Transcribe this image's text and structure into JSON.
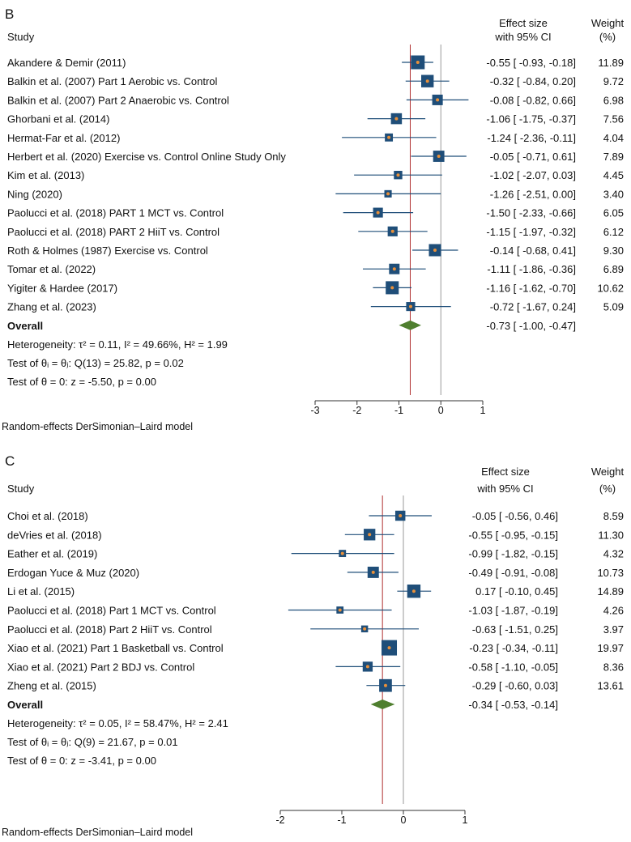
{
  "chart_data": [
    {
      "type": "forest",
      "panel_label": "B",
      "header": {
        "study": "Study",
        "effect_line1": "Effect size",
        "effect_line2": "with 95% CI",
        "weight_line1": "Weight",
        "weight_line2": "(%)"
      },
      "studies": [
        {
          "name": "Akandere & Demir (2011)",
          "es": -0.55,
          "lo": -0.93,
          "hi": -0.18,
          "weight": 11.89,
          "ci_text": "-0.55 [ -0.93,  -0.18]",
          "weight_text": "11.89"
        },
        {
          "name": "Balkin et al. (2007) Part 1 Aerobic vs. Control",
          "es": -0.32,
          "lo": -0.84,
          "hi": 0.2,
          "weight": 9.72,
          "ci_text": "-0.32 [ -0.84,   0.20]",
          "weight_text": "9.72"
        },
        {
          "name": "Balkin et al. (2007) Part 2 Anaerobic vs. Control",
          "es": -0.08,
          "lo": -0.82,
          "hi": 0.66,
          "weight": 6.98,
          "ci_text": "-0.08 [ -0.82,   0.66]",
          "weight_text": "6.98"
        },
        {
          "name": "Ghorbani et al. (2014)",
          "es": -1.06,
          "lo": -1.75,
          "hi": -0.37,
          "weight": 7.56,
          "ci_text": "-1.06 [ -1.75,  -0.37]",
          "weight_text": "7.56"
        },
        {
          "name": "Hermat-Far et al. (2012)",
          "es": -1.24,
          "lo": -2.36,
          "hi": -0.11,
          "weight": 4.04,
          "ci_text": "-1.24 [ -2.36,  -0.11]",
          "weight_text": "4.04"
        },
        {
          "name": "Herbert et al. (2020) Exercise vs. Control Online Study Only",
          "es": -0.05,
          "lo": -0.71,
          "hi": 0.61,
          "weight": 7.89,
          "ci_text": "-0.05 [ -0.71,   0.61]",
          "weight_text": "7.89"
        },
        {
          "name": "Kim et al. (2013)",
          "es": -1.02,
          "lo": -2.07,
          "hi": 0.03,
          "weight": 4.45,
          "ci_text": "-1.02 [ -2.07,   0.03]",
          "weight_text": "4.45"
        },
        {
          "name": "Ning (2020)",
          "es": -1.26,
          "lo": -2.51,
          "hi": 0.0,
          "weight": 3.4,
          "ci_text": "-1.26 [ -2.51,   0.00]",
          "weight_text": "3.40"
        },
        {
          "name": "Paolucci et al. (2018) PART 1 MCT vs. Control",
          "es": -1.5,
          "lo": -2.33,
          "hi": -0.66,
          "weight": 6.05,
          "ci_text": "-1.50 [ -2.33,  -0.66]",
          "weight_text": "6.05"
        },
        {
          "name": "Paolucci et al. (2018) PART 2 HiiT vs. Control",
          "es": -1.15,
          "lo": -1.97,
          "hi": -0.32,
          "weight": 6.12,
          "ci_text": "-1.15 [ -1.97,  -0.32]",
          "weight_text": "6.12"
        },
        {
          "name": "Roth & Holmes (1987) Exercise vs. Control",
          "es": -0.14,
          "lo": -0.68,
          "hi": 0.41,
          "weight": 9.3,
          "ci_text": "-0.14 [ -0.68,   0.41]",
          "weight_text": "9.30"
        },
        {
          "name": "Tomar et al. (2022)",
          "es": -1.11,
          "lo": -1.86,
          "hi": -0.36,
          "weight": 6.89,
          "ci_text": "-1.11 [ -1.86,  -0.36]",
          "weight_text": "6.89"
        },
        {
          "name": "Yigiter & Hardee (2017)",
          "es": -1.16,
          "lo": -1.62,
          "hi": -0.7,
          "weight": 10.62,
          "ci_text": "-1.16 [ -1.62,  -0.70]",
          "weight_text": "10.62"
        },
        {
          "name": "Zhang et al. (2023)",
          "es": -0.72,
          "lo": -1.67,
          "hi": 0.24,
          "weight": 5.09,
          "ci_text": "-0.72 [ -1.67,   0.24]",
          "weight_text": "5.09"
        }
      ],
      "overall": {
        "label": "Overall",
        "es": -0.73,
        "lo": -1.0,
        "hi": -0.47,
        "ci_text": "-0.73 [ -1.00,  -0.47]"
      },
      "stats": {
        "heterogeneity": "Heterogeneity: τ² = 0.11, I² = 49.66%, H² = 1.99",
        "test_q": "Test of θᵢ = θⱼ: Q(13) = 25.82, p = 0.02",
        "test_theta": "Test of θ = 0: z = -5.50, p = 0.00"
      },
      "xaxis": {
        "min": -3,
        "max": 1,
        "ticks": [
          -3,
          -2,
          -1,
          0,
          1
        ],
        "tick_labels": [
          "-3",
          "-2",
          "-1",
          "0",
          "1"
        ]
      },
      "footnote": "Random-effects DerSimonian–Laird model"
    },
    {
      "type": "forest",
      "panel_label": "C",
      "header": {
        "study": "Study",
        "effect_line1": "Effect size",
        "effect_line2": "with 95% CI",
        "weight_line1": "Weight",
        "weight_line2": "(%)"
      },
      "studies": [
        {
          "name": "Choi et al. (2018)",
          "es": -0.05,
          "lo": -0.56,
          "hi": 0.46,
          "weight": 8.59,
          "ci_text": "-0.05 [ -0.56,   0.46]",
          "weight_text": "8.59"
        },
        {
          "name": "deVries et al. (2018)",
          "es": -0.55,
          "lo": -0.95,
          "hi": -0.15,
          "weight": 11.3,
          "ci_text": "-0.55 [ -0.95,  -0.15]",
          "weight_text": "11.30"
        },
        {
          "name": "Eather et al. (2019)",
          "es": -0.99,
          "lo": -1.82,
          "hi": -0.15,
          "weight": 4.32,
          "ci_text": "-0.99 [ -1.82,  -0.15]",
          "weight_text": "4.32"
        },
        {
          "name": "Erdogan Yuce & Muz (2020)",
          "es": -0.49,
          "lo": -0.91,
          "hi": -0.08,
          "weight": 10.73,
          "ci_text": "-0.49 [ -0.91,  -0.08]",
          "weight_text": "10.73"
        },
        {
          "name": "Li et al. (2015)",
          "es": 0.17,
          "lo": -0.1,
          "hi": 0.45,
          "weight": 14.89,
          "ci_text": "0.17 [ -0.10,   0.45]",
          "weight_text": "14.89"
        },
        {
          "name": "Paolucci et al. (2018) Part 1 MCT vs. Control",
          "es": -1.03,
          "lo": -1.87,
          "hi": -0.19,
          "weight": 4.26,
          "ci_text": "-1.03 [ -1.87,  -0.19]",
          "weight_text": "4.26"
        },
        {
          "name": "Paolucci et al. (2018) Part 2 HiiT vs. Control",
          "es": -0.63,
          "lo": -1.51,
          "hi": 0.25,
          "weight": 3.97,
          "ci_text": "-0.63 [ -1.51,   0.25]",
          "weight_text": "3.97"
        },
        {
          "name": "Xiao et al. (2021) Part 1 Basketball vs. Control",
          "es": -0.23,
          "lo": -0.34,
          "hi": -0.11,
          "weight": 19.97,
          "ci_text": "-0.23 [ -0.34,  -0.11]",
          "weight_text": "19.97"
        },
        {
          "name": "Xiao et al. (2021) Part 2 BDJ vs. Control",
          "es": -0.58,
          "lo": -1.1,
          "hi": -0.05,
          "weight": 8.36,
          "ci_text": "-0.58 [ -1.10,  -0.05]",
          "weight_text": "8.36"
        },
        {
          "name": "Zheng et al. (2015)",
          "es": -0.29,
          "lo": -0.6,
          "hi": 0.03,
          "weight": 13.61,
          "ci_text": "-0.29 [ -0.60,   0.03]",
          "weight_text": "13.61"
        }
      ],
      "overall": {
        "label": "Overall",
        "es": -0.34,
        "lo": -0.53,
        "hi": -0.14,
        "ci_text": "-0.34 [ -0.53,  -0.14]"
      },
      "stats": {
        "heterogeneity": "Heterogeneity: τ² = 0.05, I² = 58.47%, H² = 2.41",
        "test_q": "Test of θᵢ = θⱼ: Q(9) = 21.67, p = 0.01",
        "test_theta": "Test of θ = 0: z = -3.41, p = 0.00"
      },
      "xaxis": {
        "min": -2,
        "max": 1,
        "ticks": [
          -2,
          -1,
          0,
          1
        ],
        "tick_labels": [
          "-2",
          "-1",
          "0",
          "1"
        ]
      },
      "footnote": "Random-effects DerSimonian–Laird model"
    }
  ],
  "colors": {
    "marker": "#1f4e79",
    "marker_dot": "#e8903a",
    "ci_line": "#1f4e79",
    "overall_diamond": "#4f7f2f",
    "overall_line": "#b03030",
    "null_line": "#999999",
    "axis": "#333333"
  }
}
